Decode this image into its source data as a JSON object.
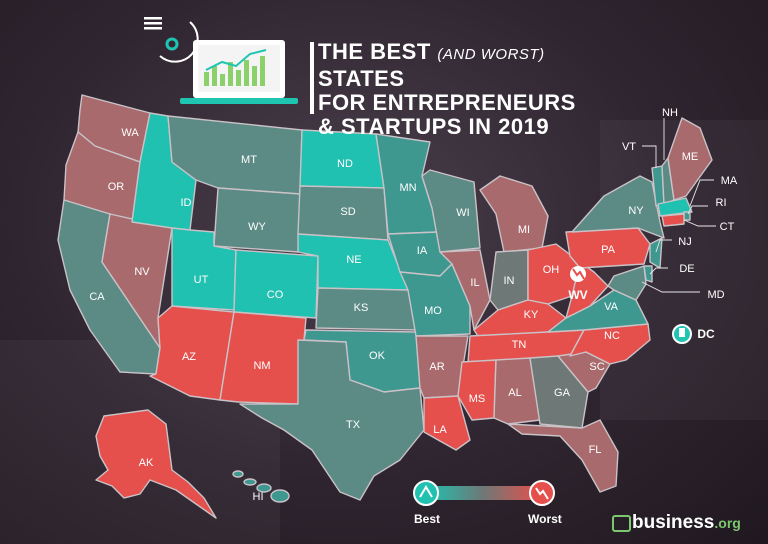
{
  "title": {
    "line1_a": "THE BEST ",
    "line1_italic": "(AND WORST)",
    "line1_b": " STATES",
    "line2": "FOR ENTREPRENEURS",
    "line3": "& STARTUPS IN 2019"
  },
  "colors": {
    "best": "#20c1b0",
    "good": "#3e9890",
    "mid": "#5c8a84",
    "neutral": "#6e7876",
    "poor": "#a86a6c",
    "worst": "#e5504c"
  },
  "states": [
    {
      "code": "WA",
      "tier": "poor"
    },
    {
      "code": "OR",
      "tier": "poor"
    },
    {
      "code": "CA",
      "tier": "mid"
    },
    {
      "code": "NV",
      "tier": "poor"
    },
    {
      "code": "ID",
      "tier": "best"
    },
    {
      "code": "MT",
      "tier": "mid"
    },
    {
      "code": "WY",
      "tier": "mid"
    },
    {
      "code": "UT",
      "tier": "best"
    },
    {
      "code": "CO",
      "tier": "best"
    },
    {
      "code": "AZ",
      "tier": "worst"
    },
    {
      "code": "NM",
      "tier": "worst"
    },
    {
      "code": "ND",
      "tier": "best"
    },
    {
      "code": "SD",
      "tier": "mid"
    },
    {
      "code": "NE",
      "tier": "best"
    },
    {
      "code": "KS",
      "tier": "mid"
    },
    {
      "code": "OK",
      "tier": "good"
    },
    {
      "code": "TX",
      "tier": "mid"
    },
    {
      "code": "MN",
      "tier": "good"
    },
    {
      "code": "IA",
      "tier": "good"
    },
    {
      "code": "MO",
      "tier": "good"
    },
    {
      "code": "AR",
      "tier": "poor"
    },
    {
      "code": "LA",
      "tier": "worst"
    },
    {
      "code": "WI",
      "tier": "mid"
    },
    {
      "code": "IL",
      "tier": "poor"
    },
    {
      "code": "MI",
      "tier": "poor"
    },
    {
      "code": "IN",
      "tier": "neutral"
    },
    {
      "code": "OH",
      "tier": "worst"
    },
    {
      "code": "KY",
      "tier": "worst"
    },
    {
      "code": "TN",
      "tier": "worst"
    },
    {
      "code": "MS",
      "tier": "worst"
    },
    {
      "code": "AL",
      "tier": "poor"
    },
    {
      "code": "GA",
      "tier": "neutral"
    },
    {
      "code": "FL",
      "tier": "poor"
    },
    {
      "code": "SC",
      "tier": "poor"
    },
    {
      "code": "NC",
      "tier": "worst"
    },
    {
      "code": "VA",
      "tier": "good"
    },
    {
      "code": "WV",
      "tier": "worst"
    },
    {
      "code": "PA",
      "tier": "worst"
    },
    {
      "code": "NY",
      "tier": "mid"
    },
    {
      "code": "VT",
      "tier": "good"
    },
    {
      "code": "NH",
      "tier": "mid"
    },
    {
      "code": "ME",
      "tier": "poor"
    },
    {
      "code": "MA",
      "tier": "best"
    },
    {
      "code": "RI",
      "tier": "good"
    },
    {
      "code": "CT",
      "tier": "worst"
    },
    {
      "code": "NJ",
      "tier": "good"
    },
    {
      "code": "DE",
      "tier": "good"
    },
    {
      "code": "MD",
      "tier": "mid"
    },
    {
      "code": "AK",
      "tier": "worst"
    },
    {
      "code": "HI",
      "tier": "good"
    },
    {
      "code": "DC",
      "tier": "best"
    }
  ],
  "legend": {
    "best_label": "Best",
    "worst_label": "Worst"
  },
  "brand": {
    "name": "business",
    "tld": ".org"
  }
}
